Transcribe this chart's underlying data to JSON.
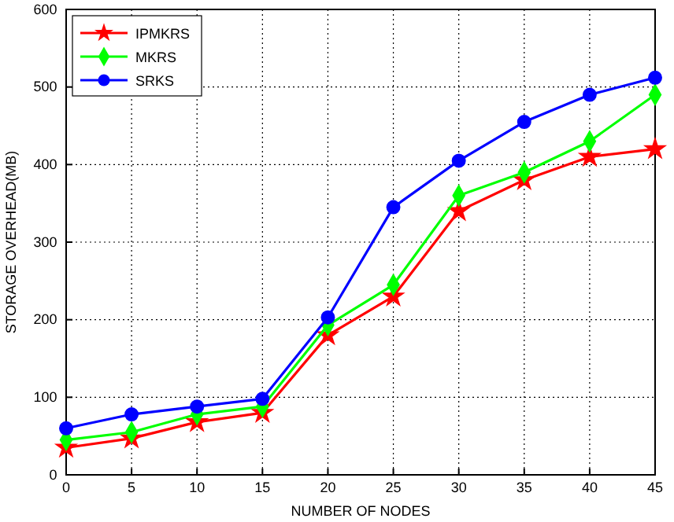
{
  "chart_data": {
    "type": "line",
    "xlabel": "NUMBER OF NODES",
    "ylabel": "STORAGE OVERHEAD(MB)",
    "x": [
      0,
      5,
      10,
      15,
      20,
      25,
      30,
      35,
      40,
      45
    ],
    "series": [
      {
        "name": "IPMKRS",
        "color": "#ff0000",
        "marker": "star",
        "values": [
          35,
          47,
          68,
          80,
          180,
          230,
          340,
          380,
          410,
          420
        ]
      },
      {
        "name": "MKRS",
        "color": "#00ff00",
        "marker": "diamond",
        "values": [
          45,
          55,
          78,
          88,
          193,
          245,
          360,
          390,
          430,
          490
        ]
      },
      {
        "name": "SRKS",
        "color": "#0000ff",
        "marker": "circle",
        "values": [
          60,
          78,
          88,
          98,
          203,
          345,
          405,
          455,
          490,
          512
        ]
      }
    ],
    "xlim": [
      0,
      45
    ],
    "xticks": [
      0,
      5,
      10,
      15,
      20,
      25,
      30,
      35,
      40,
      45
    ],
    "ylim": [
      0,
      600
    ],
    "yticks": [
      0,
      100,
      200,
      300,
      400,
      500,
      600
    ],
    "grid": true,
    "legend": "top left",
    "line_style": "solid"
  }
}
